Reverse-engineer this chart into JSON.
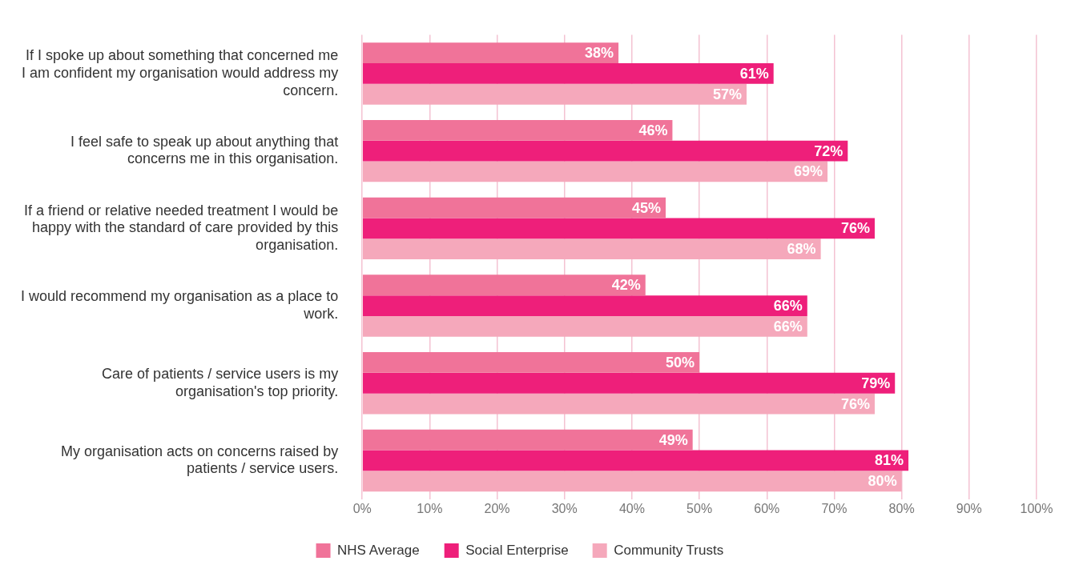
{
  "chart_data": {
    "type": "bar",
    "orientation": "horizontal",
    "categories": [
      "If I spoke up about something that concerned me I am confident my organisation would address my concern.",
      "I feel safe to speak up about anything that concerns me in this organisation.",
      "If a friend or relative needed treatment I would be happy with the standard of care provided by this organisation.",
      "I would recommend my organisation as a place to work.",
      "Care of patients / service users is my organisation's top priority.",
      "My organisation acts on concerns raised by patients / service users."
    ],
    "series": [
      {
        "name": "NHS Average",
        "color": "#f07399",
        "values": [
          38,
          46,
          45,
          42,
          50,
          49
        ],
        "value_labels": [
          "38%",
          "46%",
          "45%",
          "42%",
          "50%",
          "49%"
        ]
      },
      {
        "name": "Social Enterprise",
        "color": "#ee1f7a",
        "values": [
          61,
          72,
          76,
          66,
          79,
          81
        ],
        "value_labels": [
          "61%",
          "72%",
          "76%",
          "66%",
          "79%",
          "81%"
        ]
      },
      {
        "name": "Community Trusts",
        "color": "#f5a8bb",
        "values": [
          57,
          69,
          68,
          66,
          76,
          80
        ],
        "value_labels": [
          "57%",
          "69%",
          "68%",
          "66%",
          "76%",
          "80%"
        ]
      }
    ],
    "xlim": [
      0,
      100
    ],
    "xticks": [
      {
        "value": 0,
        "label": "0%"
      },
      {
        "value": 10,
        "label": "10%"
      },
      {
        "value": 20,
        "label": "20%"
      },
      {
        "value": 30,
        "label": "30%"
      },
      {
        "value": 40,
        "label": "40%"
      },
      {
        "value": 50,
        "label": "50%"
      },
      {
        "value": 60,
        "label": "60%"
      },
      {
        "value": 70,
        "label": "70%"
      },
      {
        "value": 80,
        "label": "80%"
      },
      {
        "value": 90,
        "label": "90%"
      },
      {
        "value": 100,
        "label": "100%"
      }
    ],
    "grid": "x",
    "legend": "bottom"
  }
}
